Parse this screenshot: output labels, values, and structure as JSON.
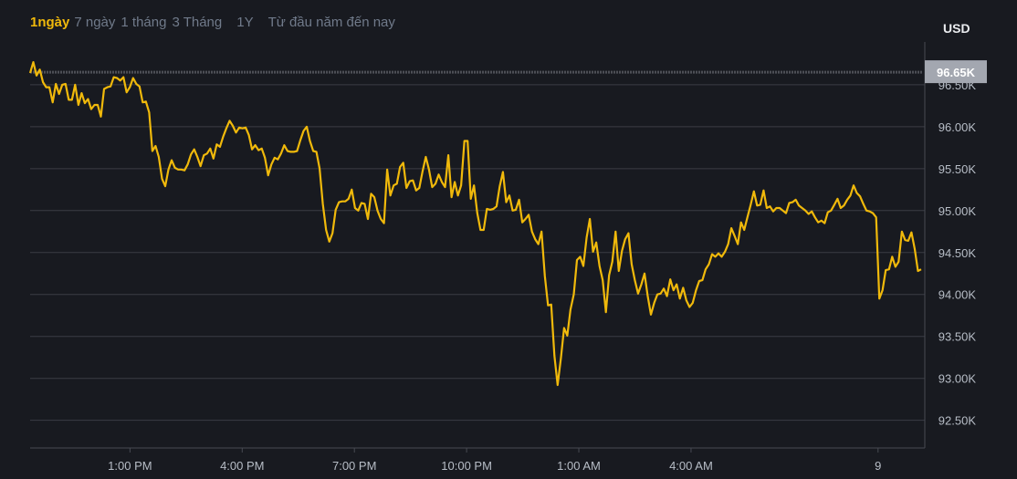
{
  "timeframes": [
    {
      "label": "1ngày",
      "active": true
    },
    {
      "label": "7 ngày",
      "active": false
    },
    {
      "label": "1 tháng",
      "active": false
    },
    {
      "label": "3 Tháng",
      "active": false
    },
    {
      "label": "1Y",
      "active": false
    },
    {
      "label": "Từ đầu năm đến nay",
      "active": false
    }
  ],
  "currency": "USD",
  "colors": {
    "background": "#181a20",
    "line": "#f0b90b",
    "grid": "#3b3d44",
    "active_tab": "#f0b90b",
    "inactive_tab": "#707a8a",
    "last_price_badge": "#a3a7b0"
  },
  "chart_data": {
    "type": "line",
    "x_unit": "hour of day (values past 24 are the next day)",
    "xlim": [
      10.33,
      34.25
    ],
    "ylim": [
      92.17,
      97.01
    ],
    "grid": true,
    "last_price": {
      "value": 96.65,
      "label": "96.65K"
    },
    "x_ticks": [
      {
        "x": 13,
        "label": "1:00 PM"
      },
      {
        "x": 16,
        "label": "4:00 PM"
      },
      {
        "x": 19,
        "label": "7:00 PM"
      },
      {
        "x": 22,
        "label": "10:00 PM"
      },
      {
        "x": 25,
        "label": "1:00 AM"
      },
      {
        "x": 28,
        "label": "4:00 AM"
      },
      {
        "x": 33,
        "label": "9"
      }
    ],
    "y_ticks": [
      {
        "y": 96.5,
        "label": "96.50K"
      },
      {
        "y": 96.0,
        "label": "96.00K"
      },
      {
        "y": 95.5,
        "label": "95.50K"
      },
      {
        "y": 95.0,
        "label": "95.00K"
      },
      {
        "y": 94.5,
        "label": "94.50K"
      },
      {
        "y": 94.0,
        "label": "94.00K"
      },
      {
        "y": 93.5,
        "label": "93.50K"
      },
      {
        "y": 93.0,
        "label": "93.00K"
      },
      {
        "y": 92.5,
        "label": "92.50K"
      }
    ],
    "values": [
      96.64,
      96.77,
      96.61,
      96.68,
      96.53,
      96.47,
      96.47,
      96.29,
      96.51,
      96.39,
      96.5,
      96.51,
      96.32,
      96.32,
      96.5,
      96.26,
      96.4,
      96.28,
      96.33,
      96.21,
      96.26,
      96.26,
      96.12,
      96.45,
      96.47,
      96.48,
      96.59,
      96.58,
      96.55,
      96.59,
      96.41,
      96.47,
      96.58,
      96.51,
      96.48,
      96.29,
      96.3,
      96.17,
      95.71,
      95.77,
      95.64,
      95.38,
      95.29,
      95.49,
      95.6,
      95.51,
      95.49,
      95.49,
      95.48,
      95.55,
      95.67,
      95.73,
      95.64,
      95.53,
      95.66,
      95.68,
      95.74,
      95.62,
      95.79,
      95.76,
      95.88,
      95.98,
      96.07,
      96.01,
      95.93,
      95.99,
      95.98,
      95.99,
      95.9,
      95.73,
      95.78,
      95.72,
      95.74,
      95.63,
      95.42,
      95.55,
      95.63,
      95.61,
      95.68,
      95.78,
      95.71,
      95.7,
      95.7,
      95.71,
      95.84,
      95.95,
      96.0,
      95.83,
      95.71,
      95.7,
      95.5,
      95.08,
      94.77,
      94.63,
      94.73,
      95.01,
      95.1,
      95.11,
      95.11,
      95.14,
      95.25,
      95.03,
      95.0,
      95.09,
      95.08,
      94.9,
      95.2,
      95.16,
      95.0,
      94.9,
      94.85,
      95.49,
      95.18,
      95.3,
      95.32,
      95.52,
      95.57,
      95.27,
      95.35,
      95.36,
      95.24,
      95.27,
      95.47,
      95.64,
      95.49,
      95.28,
      95.32,
      95.43,
      95.34,
      95.28,
      95.66,
      95.16,
      95.34,
      95.18,
      95.3,
      95.83,
      95.83,
      95.14,
      95.3,
      94.97,
      94.77,
      94.77,
      95.02,
      95.01,
      95.02,
      95.05,
      95.29,
      95.46,
      95.1,
      95.18,
      95.0,
      95.01,
      95.13,
      94.86,
      94.9,
      94.95,
      94.75,
      94.66,
      94.6,
      94.75,
      94.22,
      93.87,
      93.88,
      93.27,
      92.92,
      93.24,
      93.6,
      93.51,
      93.82,
      94.0,
      94.41,
      94.45,
      94.34,
      94.68,
      94.9,
      94.51,
      94.62,
      94.34,
      94.17,
      93.79,
      94.23,
      94.39,
      94.75,
      94.28,
      94.52,
      94.66,
      94.73,
      94.36,
      94.17,
      94.01,
      94.12,
      94.25,
      93.98,
      93.76,
      93.9,
      94.0,
      94.01,
      94.07,
      93.98,
      94.18,
      94.05,
      94.12,
      93.95,
      94.08,
      93.93,
      93.85,
      93.9,
      94.05,
      94.16,
      94.17,
      94.3,
      94.36,
      94.48,
      94.45,
      94.49,
      94.45,
      94.51,
      94.6,
      94.79,
      94.7,
      94.6,
      94.86,
      94.77,
      94.92,
      95.07,
      95.23,
      95.06,
      95.07,
      95.24,
      95.03,
      95.05,
      94.99,
      95.03,
      95.03,
      95.0,
      94.97,
      95.09,
      95.1,
      95.13,
      95.06,
      95.03,
      95.0,
      94.96,
      94.99,
      94.92,
      94.86,
      94.88,
      94.85,
      94.98,
      95.0,
      95.07,
      95.14,
      95.03,
      95.06,
      95.13,
      95.18,
      95.3,
      95.21,
      95.17,
      95.08,
      95.0,
      94.99,
      94.97,
      94.92,
      93.95,
      94.05,
      94.29,
      94.3,
      94.45,
      94.33,
      94.39,
      94.75,
      94.65,
      94.64,
      94.74,
      94.54,
      94.28,
      94.3
    ]
  }
}
